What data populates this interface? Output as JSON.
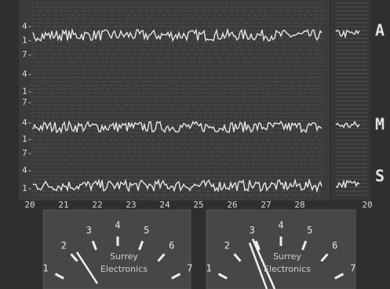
{
  "screen": {
    "row_labels": [
      "4-",
      "1-",
      "7-",
      "4-",
      "1-",
      "7-",
      "4-",
      "1-",
      "7-",
      "4-",
      "1-"
    ],
    "x_axis": [
      "20",
      "21",
      "22",
      "23",
      "24",
      "25",
      "26",
      "27",
      "28"
    ],
    "right_axis": "20",
    "channels": [
      "A",
      "M",
      "S"
    ]
  },
  "meters": [
    {
      "scale": [
        "1",
        "2",
        "3",
        "4",
        "5",
        "6",
        "7"
      ],
      "brand": [
        "Surrey",
        "Electronics"
      ]
    },
    {
      "scale": [
        "1",
        "2",
        "3",
        "4",
        "5",
        "6",
        "7"
      ],
      "brand": [
        "Surrey",
        "Electronics"
      ]
    }
  ]
}
